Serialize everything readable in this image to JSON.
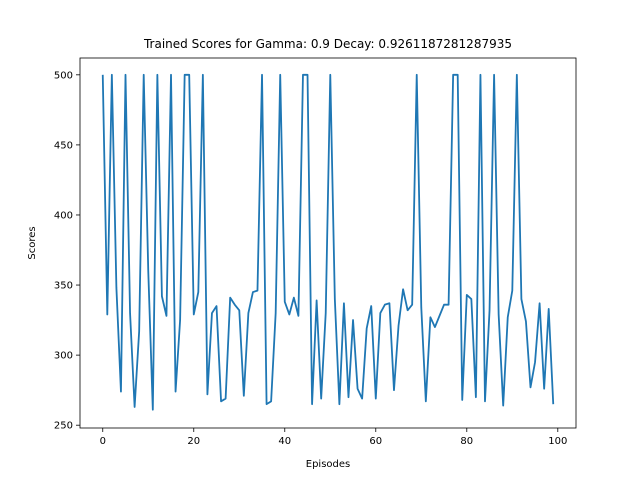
{
  "chart_data": {
    "type": "line",
    "title": "Trained Scores for Gamma: 0.9 Decay: 0.9261187281287935",
    "xlabel": "Episodes",
    "ylabel": "Scores",
    "xlim": [
      -5,
      104
    ],
    "ylim": [
      248,
      512
    ],
    "xticks": [
      0,
      20,
      40,
      60,
      80,
      100
    ],
    "yticks": [
      250,
      300,
      350,
      400,
      450,
      500
    ],
    "grid": false,
    "colors": {
      "line": "#1f77b4",
      "axes": "#000000",
      "background": "#ffffff"
    },
    "series": [
      {
        "x": [
          0,
          1,
          2,
          3,
          4,
          5,
          6,
          7,
          8,
          9,
          10,
          11,
          12,
          13,
          14,
          15,
          16,
          17,
          18,
          19,
          20,
          21,
          22,
          23,
          24,
          25,
          26,
          27,
          28,
          29,
          30,
          31,
          32,
          33,
          34,
          35,
          36,
          37,
          38,
          39,
          40,
          41,
          42,
          43,
          44,
          45,
          46,
          47,
          48,
          49,
          50,
          51,
          52,
          53,
          54,
          55,
          56,
          57,
          58,
          59,
          60,
          61,
          62,
          63,
          64,
          65,
          66,
          67,
          68,
          69,
          70,
          71,
          72,
          73,
          74,
          75,
          76,
          77,
          78,
          79,
          80,
          81,
          82,
          83,
          84,
          85,
          86,
          87,
          88,
          89,
          90,
          91,
          92,
          93,
          94,
          95,
          96,
          97,
          98,
          99
        ],
        "values": [
          500,
          329,
          500,
          348,
          274,
          500,
          330,
          263,
          317,
          500,
          360,
          261,
          500,
          342,
          328,
          500,
          274,
          325,
          500,
          500,
          329,
          345,
          500,
          272,
          330,
          335,
          267,
          269,
          341,
          336,
          332,
          271,
          330,
          345,
          346,
          500,
          265,
          267,
          330,
          500,
          338,
          329,
          341,
          328,
          500,
          500,
          265,
          339,
          269,
          330,
          500,
          340,
          265,
          337,
          270,
          325,
          276,
          269,
          319,
          335,
          269,
          330,
          336,
          337,
          275,
          321,
          347,
          332,
          336,
          500,
          334,
          267,
          327,
          320,
          328,
          336,
          336,
          500,
          500,
          268,
          343,
          340,
          270,
          500,
          267,
          332,
          500,
          329,
          264,
          327,
          346,
          500,
          340,
          324,
          277,
          295,
          337,
          276,
          333,
          265
        ]
      }
    ]
  }
}
